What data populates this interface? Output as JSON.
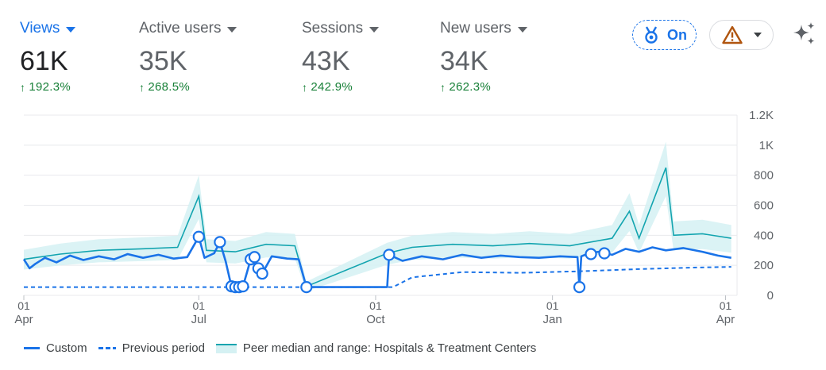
{
  "metrics": [
    {
      "label": "Views",
      "value": "61K",
      "change": "192.3%",
      "active": true
    },
    {
      "label": "Active users",
      "value": "35K",
      "change": "268.5%",
      "active": false
    },
    {
      "label": "Sessions",
      "value": "43K",
      "change": "242.9%",
      "active": false
    },
    {
      "label": "New users",
      "value": "34K",
      "change": "262.3%",
      "active": false
    }
  ],
  "controls": {
    "on_label": "On",
    "badge_icon": "medal-icon",
    "warning_icon": "warning-triangle-icon",
    "sparkle_icon": "sparkle-icon"
  },
  "colors": {
    "custom": "#1a73e8",
    "previous": "#1a73e8",
    "peer_line": "#12a4af",
    "peer_band": "#d5f1f3",
    "positive": "#188038"
  },
  "legend": {
    "custom": "Custom",
    "previous": "Previous period",
    "peer": "Peer median and range: Hospitals & Treatment Centers"
  },
  "chart_data": {
    "type": "line",
    "y_ticks": [
      "0",
      "200",
      "400",
      "600",
      "800",
      "1K",
      "1.2K"
    ],
    "y_tick_values": [
      0,
      200,
      400,
      600,
      800,
      1000,
      1200
    ],
    "ylim": [
      0,
      1200
    ],
    "x_ticks": [
      {
        "day": "01",
        "month": "Apr",
        "date": "2024-04-01"
      },
      {
        "day": "01",
        "month": "Jul",
        "date": "2024-07-01"
      },
      {
        "day": "01",
        "month": "Oct",
        "date": "2024-10-01"
      },
      {
        "day": "01",
        "month": "Jan",
        "date": "2025-01-01"
      },
      {
        "day": "01",
        "month": "Apr",
        "date": "2025-04-01"
      }
    ],
    "xlim": [
      "2024-04-01",
      "2025-04-07"
    ],
    "grid": true,
    "legend_position": "bottom-left",
    "series": [
      {
        "name": "Custom",
        "style": "solid",
        "points": [
          [
            "2024-04-01",
            240
          ],
          [
            "2024-04-04",
            180
          ],
          [
            "2024-04-07",
            210
          ],
          [
            "2024-04-12",
            250
          ],
          [
            "2024-04-18",
            220
          ],
          [
            "2024-04-25",
            265
          ],
          [
            "2024-05-02",
            235
          ],
          [
            "2024-05-10",
            260
          ],
          [
            "2024-05-18",
            240
          ],
          [
            "2024-05-25",
            275
          ],
          [
            "2024-06-02",
            250
          ],
          [
            "2024-06-10",
            270
          ],
          [
            "2024-06-18",
            245
          ],
          [
            "2024-06-25",
            255
          ],
          [
            "2024-07-01",
            390
          ],
          [
            "2024-07-04",
            250
          ],
          [
            "2024-07-09",
            280
          ],
          [
            "2024-07-12",
            355
          ],
          [
            "2024-07-15",
            225
          ],
          [
            "2024-07-18",
            60
          ],
          [
            "2024-07-20",
            55
          ],
          [
            "2024-07-22",
            55
          ],
          [
            "2024-07-24",
            60
          ],
          [
            "2024-07-26",
            150
          ],
          [
            "2024-07-28",
            240
          ],
          [
            "2024-07-30",
            255
          ],
          [
            "2024-08-01",
            180
          ],
          [
            "2024-08-03",
            145
          ],
          [
            "2024-08-08",
            260
          ],
          [
            "2024-08-16",
            245
          ],
          [
            "2024-08-22",
            240
          ],
          [
            "2024-08-26",
            55
          ],
          [
            "2024-09-22",
            55
          ],
          [
            "2024-10-01",
            55
          ],
          [
            "2024-10-07",
            55
          ],
          [
            "2024-10-08",
            270
          ],
          [
            "2024-10-15",
            230
          ],
          [
            "2024-10-25",
            260
          ],
          [
            "2024-11-05",
            240
          ],
          [
            "2024-11-15",
            270
          ],
          [
            "2024-11-25",
            250
          ],
          [
            "2024-12-05",
            265
          ],
          [
            "2024-12-15",
            255
          ],
          [
            "2024-12-25",
            250
          ],
          [
            "2025-01-05",
            260
          ],
          [
            "2025-01-14",
            255
          ],
          [
            "2025-01-15",
            55
          ],
          [
            "2025-01-16",
            260
          ],
          [
            "2025-01-20",
            280
          ],
          [
            "2025-01-25",
            290
          ],
          [
            "2025-02-01",
            270
          ],
          [
            "2025-02-08",
            310
          ],
          [
            "2025-02-15",
            290
          ],
          [
            "2025-02-22",
            320
          ],
          [
            "2025-03-01",
            300
          ],
          [
            "2025-03-10",
            315
          ],
          [
            "2025-03-20",
            290
          ],
          [
            "2025-03-28",
            265
          ],
          [
            "2025-04-04",
            250
          ]
        ]
      },
      {
        "name": "Previous period",
        "style": "dashed",
        "points": [
          [
            "2024-04-01",
            55
          ],
          [
            "2024-10-10",
            55
          ],
          [
            "2024-10-20",
            120
          ],
          [
            "2024-11-15",
            155
          ],
          [
            "2024-12-15",
            150
          ],
          [
            "2025-01-15",
            160
          ],
          [
            "2025-02-15",
            175
          ],
          [
            "2025-03-15",
            185
          ],
          [
            "2025-04-04",
            190
          ]
        ]
      },
      {
        "name": "Peer median and range: Hospitals & Treatment Centers",
        "style": "band",
        "points": [
          [
            "2024-04-01",
            240
          ],
          [
            "2024-04-20",
            275
          ],
          [
            "2024-05-10",
            300
          ],
          [
            "2024-06-01",
            310
          ],
          [
            "2024-06-20",
            320
          ],
          [
            "2024-07-01",
            660
          ],
          [
            "2024-07-05",
            300
          ],
          [
            "2024-07-20",
            290
          ],
          [
            "2024-08-05",
            340
          ],
          [
            "2024-08-20",
            330
          ],
          [
            "2024-08-26",
            60
          ],
          [
            "2024-10-07",
            280
          ],
          [
            "2024-10-20",
            320
          ],
          [
            "2024-11-10",
            340
          ],
          [
            "2024-12-01",
            330
          ],
          [
            "2024-12-20",
            345
          ],
          [
            "2025-01-10",
            330
          ],
          [
            "2025-02-01",
            380
          ],
          [
            "2025-02-10",
            560
          ],
          [
            "2025-02-15",
            380
          ],
          [
            "2025-03-01",
            850
          ],
          [
            "2025-03-05",
            400
          ],
          [
            "2025-03-20",
            410
          ],
          [
            "2025-04-04",
            380
          ]
        ]
      }
    ],
    "highlighted_points": [
      [
        "2024-07-01",
        390
      ],
      [
        "2024-07-12",
        355
      ],
      [
        "2024-07-18",
        60
      ],
      [
        "2024-07-20",
        55
      ],
      [
        "2024-07-22",
        55
      ],
      [
        "2024-07-24",
        60
      ],
      [
        "2024-07-28",
        240
      ],
      [
        "2024-07-30",
        255
      ],
      [
        "2024-08-01",
        180
      ],
      [
        "2024-08-03",
        145
      ],
      [
        "2024-08-26",
        55
      ],
      [
        "2024-10-08",
        270
      ],
      [
        "2025-01-15",
        55
      ],
      [
        "2025-01-21",
        275
      ],
      [
        "2025-01-28",
        280
      ]
    ]
  }
}
